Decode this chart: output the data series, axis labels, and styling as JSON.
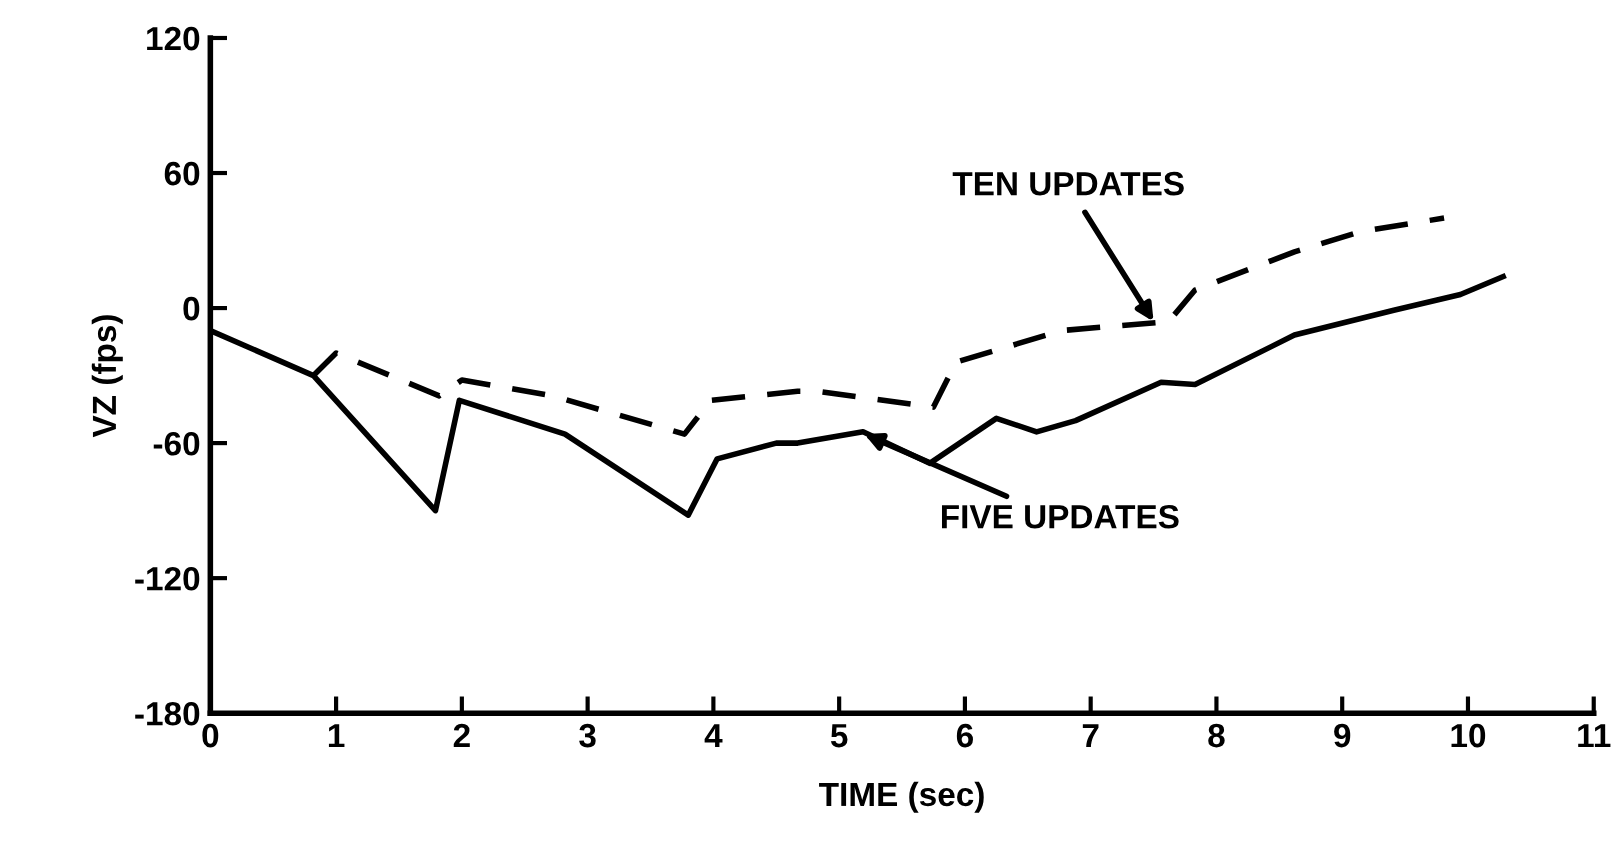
{
  "chart_data": {
    "type": "line",
    "xlabel": "TIME (sec)",
    "ylabel": "VZ (fps)",
    "xlim": [
      0,
      11
    ],
    "xticks": [
      0,
      1,
      2,
      3,
      4,
      5,
      6,
      7,
      8,
      9,
      10,
      11
    ],
    "ylim": [
      -180,
      120
    ],
    "yticks": [
      -180,
      -120,
      -60,
      0,
      60,
      120
    ],
    "grid": false,
    "legend": false,
    "series": [
      {
        "color": "#000000",
        "line_style": "solid",
        "x": [
          0,
          0.82,
          1.79,
          1.98,
          2.82,
          3.8,
          4.03,
          4.5,
          4.67,
          5.19,
          5.72,
          6.25,
          6.57,
          6.88,
          7.56,
          7.83,
          8.62,
          9.41,
          9.94,
          10.28
        ],
        "values": [
          -10,
          -30,
          -90,
          -41,
          -56,
          -92,
          -67,
          -60,
          -60,
          -55,
          -69,
          -49,
          -55,
          -50,
          -33,
          -34,
          -12,
          -1,
          6,
          14
        ]
      },
      {
        "color": "#000000",
        "line_style": "dashed",
        "x": [
          0.82,
          1.0,
          1.82,
          2.0,
          2.72,
          3.77,
          3.98,
          4.67,
          4.83,
          5.75,
          5.93,
          6.77,
          7.62,
          7.83,
          8.62,
          9.15,
          9.81
        ],
        "values": [
          -30,
          -20,
          -39,
          -32,
          -39,
          -56,
          -41,
          -37,
          -37,
          -44,
          -24,
          -10,
          -6,
          8,
          25,
          34,
          40
        ]
      }
    ],
    "annotations": [
      {
        "text": "TEN UPDATES",
        "x": 7.5,
        "y": -6
      },
      {
        "text": "FIVE UPDATES",
        "x": 5.2,
        "y": -56
      }
    ]
  }
}
